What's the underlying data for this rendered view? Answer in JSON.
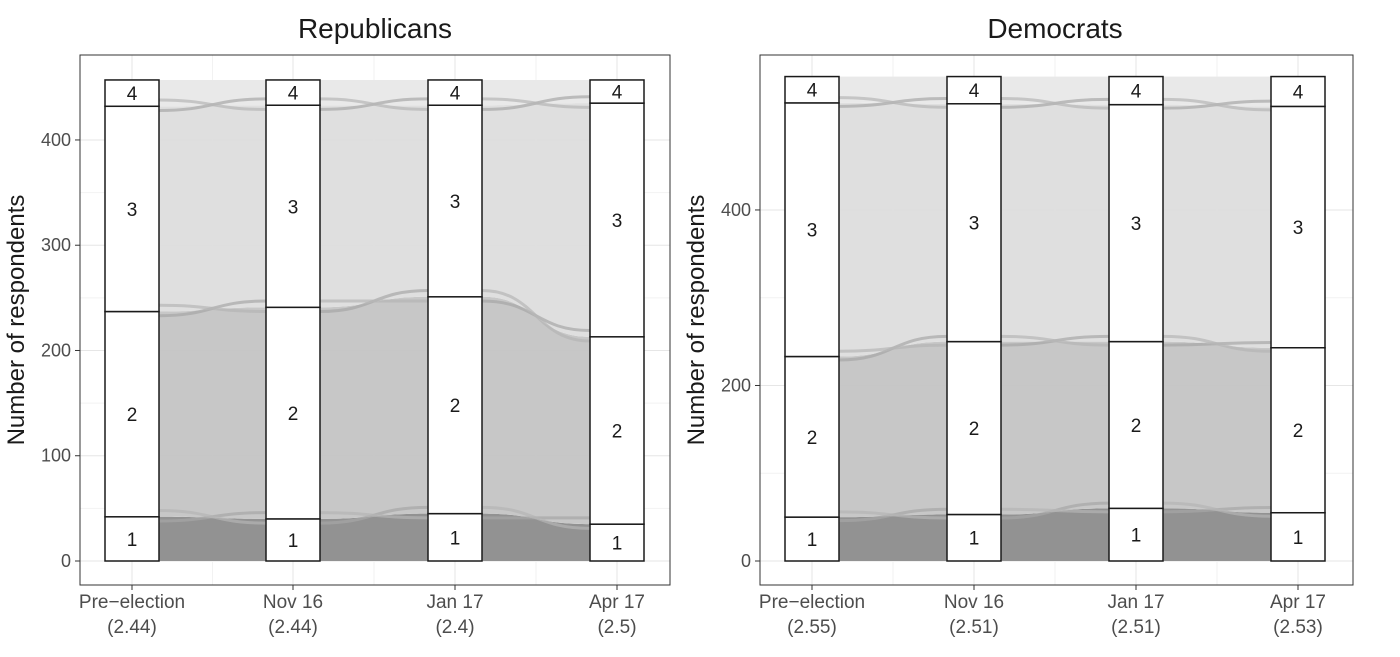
{
  "chart_data": [
    {
      "type": "alluvial",
      "title": "Republicans",
      "ylabel": "Number of respondents",
      "xlabel": "",
      "ylim": [
        0,
        470
      ],
      "yticks": [
        0,
        100,
        200,
        300,
        400
      ],
      "axes": [
        {
          "label": "Pre−election",
          "mean": "(2.44)"
        },
        {
          "label": "Nov 16",
          "mean": "(2.44)"
        },
        {
          "label": "Jan 17",
          "mean": "(2.4)"
        },
        {
          "label": "Apr 17",
          "mean": "(2.5)"
        }
      ],
      "strata_labels": [
        "1",
        "2",
        "3",
        "4"
      ],
      "strata_counts": [
        [
          42,
          195,
          195,
          25
        ],
        [
          40,
          201,
          192,
          24
        ],
        [
          45,
          206,
          182,
          24
        ],
        [
          35,
          178,
          222,
          22
        ]
      ],
      "grid": true
    },
    {
      "type": "alluvial",
      "title": "Democrats",
      "ylabel": "Number of respondents",
      "xlabel": "",
      "ylim": [
        0,
        560
      ],
      "yticks": [
        0,
        200,
        400
      ],
      "axes": [
        {
          "label": "Pre−election",
          "mean": "(2.55)"
        },
        {
          "label": "Nov 16",
          "mean": "(2.51)"
        },
        {
          "label": "Jan 17",
          "mean": "(2.51)"
        },
        {
          "label": "Apr 17",
          "mean": "(2.53)"
        }
      ],
      "strata_labels": [
        "1",
        "2",
        "3",
        "4"
      ],
      "strata_counts": [
        [
          50,
          183,
          289,
          30
        ],
        [
          53,
          197,
          271,
          31
        ],
        [
          60,
          190,
          270,
          32
        ],
        [
          55,
          188,
          275,
          34
        ]
      ],
      "grid": true
    }
  ]
}
